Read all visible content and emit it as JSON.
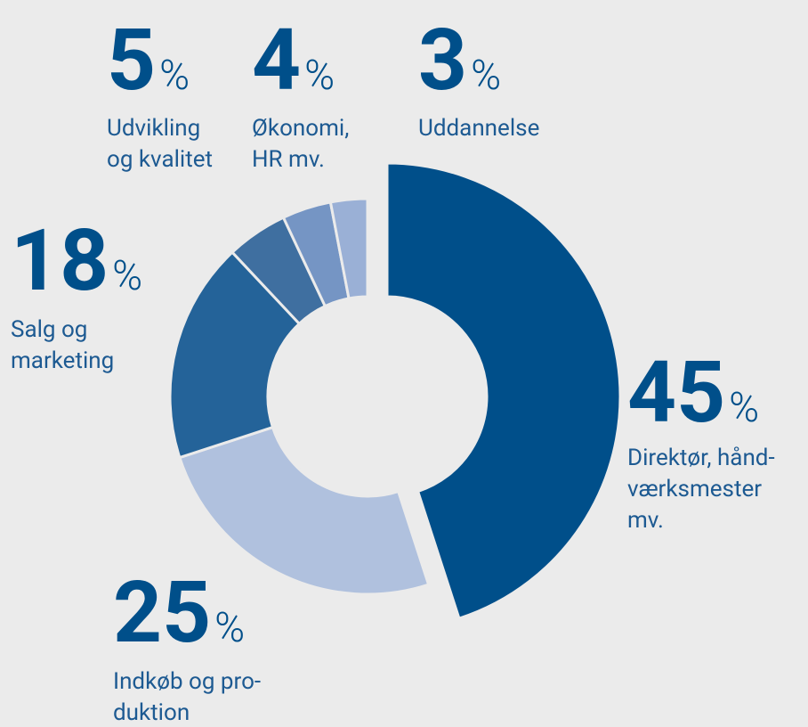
{
  "chart_data": {
    "type": "donut",
    "categories": [
      "Direktør, hånd-\nværksmester\nmv.",
      "Indkøb og pro-\nduktion",
      "Salg og\nmarketing",
      "Udvikling\nog kvalitet",
      "Økonomi,\nHR mv.",
      "Uddannelse"
    ],
    "values": [
      45,
      25,
      18,
      5,
      4,
      3
    ],
    "value_labels": [
      "45%",
      "25%",
      "18%",
      "5%",
      "4%",
      "3%"
    ],
    "colors": [
      "#004f8a",
      "#b0c1de",
      "#246399",
      "#3f6fa0",
      "#7595c4",
      "#9ab0d6"
    ]
  }
}
